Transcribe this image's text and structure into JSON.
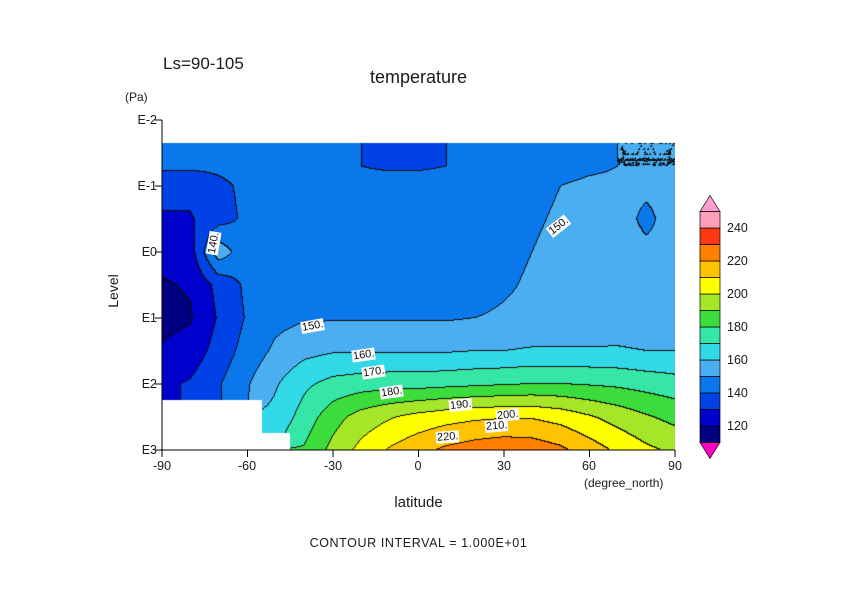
{
  "chart_data": {
    "type": "heatmap",
    "title": "temperature",
    "ls_range": "Ls=90-105",
    "xlabel": "latitude",
    "x_unit": "(degree_north)",
    "ylabel": "Level",
    "y_unit": "(Pa)",
    "footer": "CONTOUR INTERVAL = 1.000E+01",
    "contour_interval": 10,
    "xlim": [
      -90,
      90
    ],
    "ylim_log10pa": [
      -2,
      3
    ],
    "x_ticks": [
      "-90",
      "-60",
      "-30",
      "0",
      "30",
      "60",
      "90"
    ],
    "y_ticks": [
      "E-2",
      "E-1",
      "E0",
      "E1",
      "E2",
      "E3"
    ],
    "x": [
      -90,
      -80,
      -70,
      -60,
      -50,
      -40,
      -30,
      -20,
      -10,
      0,
      10,
      20,
      30,
      40,
      50,
      60,
      70,
      80,
      90
    ],
    "y_levels_log10pa": [
      -2,
      -1.3,
      -1,
      -0.5,
      0,
      0.5,
      1,
      1.5,
      2,
      2.5,
      3
    ],
    "values": [
      [
        null,
        null,
        null,
        null,
        null,
        null,
        null,
        null,
        null,
        null,
        null,
        null,
        null,
        null,
        null,
        null,
        null,
        null,
        null
      ],
      [
        142,
        142,
        142,
        143,
        144,
        143,
        142,
        140,
        139,
        139,
        140,
        142,
        144,
        147,
        148,
        149,
        150,
        150,
        150
      ],
      [
        133,
        133,
        138,
        142,
        144,
        144,
        143,
        142,
        143,
        143,
        143,
        144,
        146,
        148,
        150,
        151,
        151,
        151,
        151
      ],
      [
        129,
        129,
        136,
        142,
        145,
        145,
        144,
        143,
        143,
        143,
        144,
        146,
        147,
        149,
        151,
        152,
        152,
        149,
        152
      ],
      [
        123,
        125,
        156,
        143,
        147,
        146,
        145,
        144,
        144,
        144,
        145,
        146,
        148,
        150,
        152,
        153,
        152,
        151,
        151
      ],
      [
        119,
        121,
        133,
        142,
        146,
        147,
        146,
        146,
        146,
        146,
        146,
        147,
        149,
        151,
        152,
        153,
        153,
        152,
        152
      ],
      [
        117,
        119,
        131,
        141,
        147,
        149,
        149,
        149,
        149,
        149,
        149,
        150,
        151,
        152,
        153,
        153,
        154,
        154,
        153
      ],
      [
        121,
        124,
        134,
        144,
        152,
        157,
        159,
        159,
        159,
        159,
        159,
        160,
        160,
        161,
        161,
        161,
        161,
        160,
        160
      ],
      [
        128,
        131,
        139,
        149,
        159,
        168,
        173,
        175,
        176,
        176,
        177,
        178,
        179,
        180,
        180,
        179,
        178,
        176,
        174
      ],
      [
        null,
        null,
        null,
        null,
        163,
        174,
        186,
        194,
        199,
        203,
        206,
        208,
        209,
        209,
        206,
        201,
        196,
        191,
        187
      ],
      [
        null,
        null,
        null,
        null,
        null,
        181,
        193,
        203,
        211,
        217,
        222,
        225,
        227,
        226,
        222,
        215,
        208,
        202,
        198
      ]
    ],
    "contour_line_color": "#0a0a0a",
    "colorbar": {
      "band_min": 110,
      "band_max": 250,
      "band_step": 10,
      "under_color": "#FF00C0",
      "over_color": "#FF9ECE",
      "bands": [
        {
          "min": 110,
          "color": "#000080"
        },
        {
          "min": 120,
          "color": "#0000CD"
        },
        {
          "min": 130,
          "color": "#0042E6"
        },
        {
          "min": 140,
          "color": "#0A78EB"
        },
        {
          "min": 150,
          "color": "#4BAEF0"
        },
        {
          "min": 160,
          "color": "#31D8E6"
        },
        {
          "min": 170,
          "color": "#35E6A7"
        },
        {
          "min": 180,
          "color": "#3CDC3C"
        },
        {
          "min": 190,
          "color": "#A5E628"
        },
        {
          "min": 200,
          "color": "#FFFF00"
        },
        {
          "min": 210,
          "color": "#FFC300"
        },
        {
          "min": 220,
          "color": "#FF7F00"
        },
        {
          "min": 230,
          "color": "#FF3814"
        },
        {
          "min": 240,
          "color": "#FF9EB9"
        }
      ],
      "labels": [
        "120",
        "140",
        "160",
        "180",
        "200",
        "220",
        "240"
      ]
    },
    "contour_labels": [
      {
        "text": "140."
      },
      {
        "text": "150."
      },
      {
        "text": "150."
      },
      {
        "text": "160."
      },
      {
        "text": "170."
      },
      {
        "text": "180."
      },
      {
        "text": "190."
      },
      {
        "text": "200."
      },
      {
        "text": "210."
      },
      {
        "text": "220."
      }
    ]
  }
}
